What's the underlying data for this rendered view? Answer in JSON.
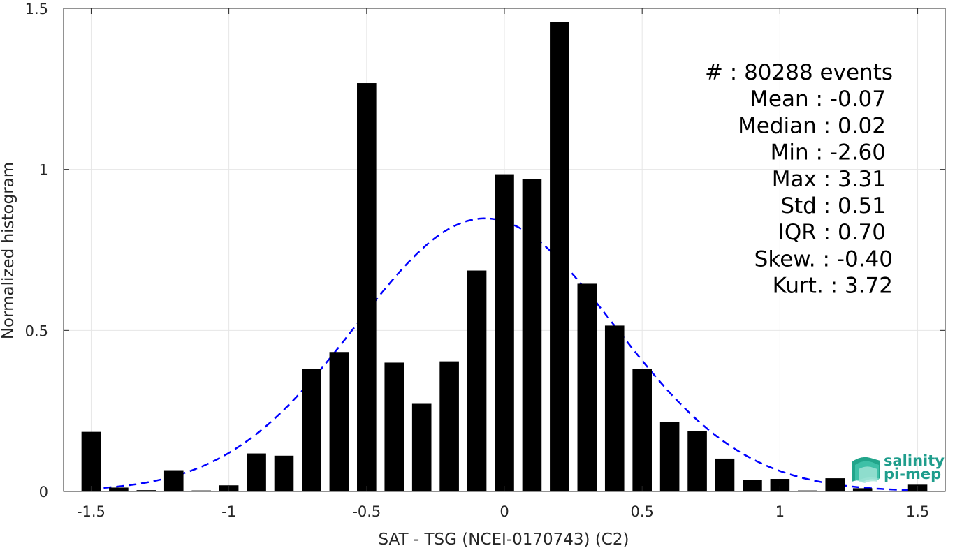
{
  "chart_data": {
    "type": "bar",
    "xlabel": "SAT - TSG (NCEI-0170743) (C2)",
    "ylabel": "Normalized histogram",
    "xlim": [
      -1.6,
      1.6
    ],
    "ylim": [
      0,
      1.5
    ],
    "grid": true,
    "xticks": [
      -1.5,
      -1,
      -0.5,
      0,
      0.5,
      1,
      1.5
    ],
    "xtick_labels": [
      "-1.5",
      "-1",
      "-0.5",
      "0",
      "0.5",
      "1",
      "1.5"
    ],
    "yticks": [
      0,
      0.5,
      1,
      1.5
    ],
    "ytick_labels": [
      "0",
      "0.5",
      "1",
      "1.5"
    ],
    "bar_width": 0.07,
    "bins": [
      {
        "x": -1.5,
        "y": 0.185
      },
      {
        "x": -1.4,
        "y": 0.012
      },
      {
        "x": -1.3,
        "y": 0.004
      },
      {
        "x": -1.2,
        "y": 0.066
      },
      {
        "x": -1.1,
        "y": 0.003
      },
      {
        "x": -1.0,
        "y": 0.019
      },
      {
        "x": -0.9,
        "y": 0.118
      },
      {
        "x": -0.8,
        "y": 0.111
      },
      {
        "x": -0.7,
        "y": 0.381
      },
      {
        "x": -0.6,
        "y": 0.433
      },
      {
        "x": -0.5,
        "y": 1.268
      },
      {
        "x": -0.4,
        "y": 0.4
      },
      {
        "x": -0.3,
        "y": 0.272
      },
      {
        "x": -0.2,
        "y": 0.404
      },
      {
        "x": -0.1,
        "y": 0.686
      },
      {
        "x": 0.0,
        "y": 0.985
      },
      {
        "x": 0.1,
        "y": 0.971
      },
      {
        "x": 0.2,
        "y": 1.457
      },
      {
        "x": 0.3,
        "y": 0.645
      },
      {
        "x": 0.4,
        "y": 0.515
      },
      {
        "x": 0.5,
        "y": 0.38
      },
      {
        "x": 0.6,
        "y": 0.216
      },
      {
        "x": 0.7,
        "y": 0.188
      },
      {
        "x": 0.8,
        "y": 0.102
      },
      {
        "x": 0.9,
        "y": 0.036
      },
      {
        "x": 1.0,
        "y": 0.039
      },
      {
        "x": 1.1,
        "y": 0.003
      },
      {
        "x": 1.2,
        "y": 0.041
      },
      {
        "x": 1.3,
        "y": 0.01
      },
      {
        "x": 1.5,
        "y": 0.021
      }
    ],
    "fit_curve": {
      "type": "gaussian",
      "mean": -0.07,
      "std": 0.47,
      "peak": 0.848,
      "x_range": [
        -1.5,
        1.5
      ],
      "color": "#0000ff",
      "style": "dashed"
    },
    "bar_color": "#000000",
    "stats_lines": [
      "#  : 80288 events",
      "Mean : -0.07",
      "Median : 0.02",
      "Min : -2.60",
      "Max : 3.31",
      "Std : 0.51",
      "IQR : 0.70",
      "Skew. : -0.40",
      "Kurt. : 3.72"
    ]
  },
  "logo": {
    "line1": "salinity",
    "line2": "pi-mep",
    "color": "#1f9d8c"
  }
}
